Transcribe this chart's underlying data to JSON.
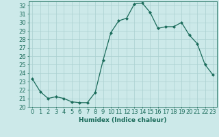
{
  "x": [
    0,
    1,
    2,
    3,
    4,
    5,
    6,
    7,
    8,
    9,
    10,
    11,
    12,
    13,
    14,
    15,
    16,
    17,
    18,
    19,
    20,
    21,
    22,
    23
  ],
  "y": [
    23.3,
    21.8,
    21.0,
    21.2,
    21.0,
    20.6,
    20.5,
    20.5,
    21.7,
    25.5,
    28.8,
    30.2,
    30.5,
    32.2,
    32.3,
    31.2,
    29.3,
    29.5,
    29.5,
    30.0,
    28.5,
    27.5,
    25.0,
    23.8
  ],
  "line_color": "#1a6b5a",
  "marker": "D",
  "marker_size": 2.2,
  "bg_color": "#cce9e9",
  "grid_color": "#aad0d0",
  "xlabel": "Humidex (Indice chaleur)",
  "ylim": [
    20,
    32.5
  ],
  "xlim": [
    -0.5,
    23.5
  ],
  "yticks": [
    20,
    21,
    22,
    23,
    24,
    25,
    26,
    27,
    28,
    29,
    30,
    31,
    32
  ],
  "xticks": [
    0,
    1,
    2,
    3,
    4,
    5,
    6,
    7,
    8,
    9,
    10,
    11,
    12,
    13,
    14,
    15,
    16,
    17,
    18,
    19,
    20,
    21,
    22,
    23
  ],
  "xlabel_fontsize": 6.5,
  "tick_fontsize": 6.0,
  "tick_color": "#1a6b5a",
  "axis_color": "#1a6b5a",
  "linewidth": 0.9
}
